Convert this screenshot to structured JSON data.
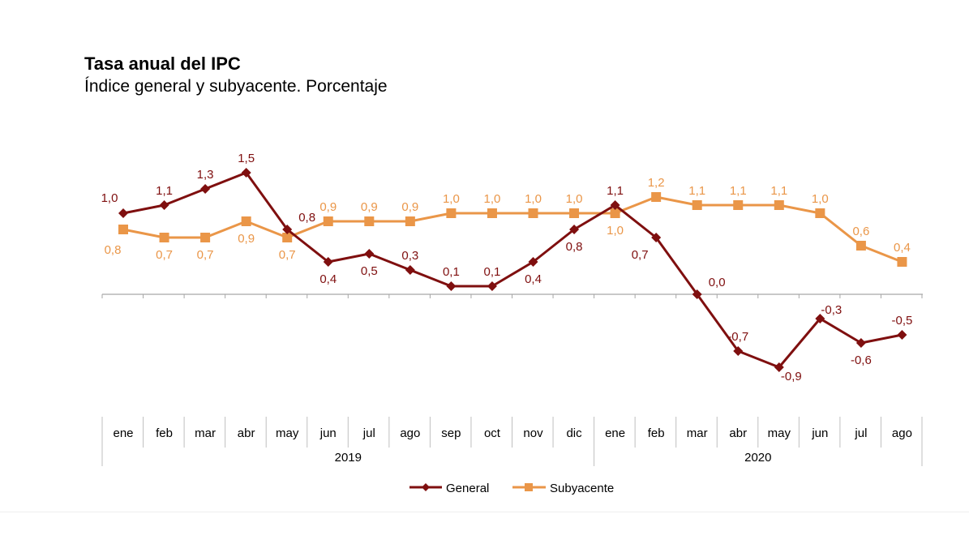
{
  "chart_data": {
    "type": "line",
    "title": "Tasa anual del IPC",
    "subtitle": "Índice general y subyacente. Porcentaje",
    "xlabel": "",
    "ylabel": "",
    "categories": [
      "ene",
      "feb",
      "mar",
      "abr",
      "may",
      "jun",
      "jul",
      "ago",
      "sep",
      "oct",
      "nov",
      "dic",
      "ene",
      "feb",
      "mar",
      "abr",
      "may",
      "jun",
      "jul",
      "ago"
    ],
    "year_groups": [
      {
        "label": "2019",
        "count": 12
      },
      {
        "label": "2020",
        "count": 8
      }
    ],
    "ylim": [
      -1.5,
      2.0
    ],
    "grid": false,
    "legend_position": "bottom-center",
    "series": [
      {
        "name": "General",
        "color": "#7f0f0f",
        "marker": "diamond",
        "values": [
          1.0,
          1.1,
          1.3,
          1.5,
          0.8,
          0.4,
          0.5,
          0.3,
          0.1,
          0.1,
          0.4,
          0.8,
          1.1,
          0.7,
          0.0,
          -0.7,
          -0.9,
          -0.3,
          -0.6,
          -0.5
        ],
        "labels": [
          "1,0",
          "1,1",
          "1,3",
          "1,5",
          "0,8",
          "0,4",
          "0,5",
          "0,3",
          "0,1",
          "0,1",
          "0,4",
          "0,8",
          "1,1",
          "0,7",
          "0,0",
          "-0,7",
          "-0,9",
          "-0,3",
          "-0,6",
          "-0,5"
        ],
        "label_pos": [
          "above",
          "above",
          "above",
          "above",
          "right-above",
          "below",
          "below",
          "above",
          "above",
          "above",
          "below",
          "below",
          "above",
          "below-left",
          "right-above",
          "above",
          "below",
          "above",
          "below",
          "above"
        ]
      },
      {
        "name": "Subyacente",
        "color": "#ea9648",
        "marker": "square",
        "values": [
          0.8,
          0.7,
          0.7,
          0.9,
          0.7,
          0.9,
          0.9,
          0.9,
          1.0,
          1.0,
          1.0,
          1.0,
          1.0,
          1.2,
          1.1,
          1.1,
          1.1,
          1.0,
          0.6,
          0.4
        ],
        "labels": [
          "0,8",
          "0,7",
          "0,7",
          "0,9",
          "0,7",
          "0,9",
          "0,9",
          "0,9",
          "1,0",
          "1,0",
          "1,0",
          "1,0",
          "1,0",
          "1,2",
          "1,1",
          "1,1",
          "1,1",
          "1,0",
          "0,6",
          "0,4"
        ],
        "label_pos": [
          "below",
          "below",
          "below",
          "below",
          "below",
          "above",
          "above",
          "above",
          "above",
          "above",
          "above",
          "above",
          "below",
          "above",
          "above",
          "above",
          "above",
          "above",
          "above",
          "above"
        ]
      }
    ]
  }
}
